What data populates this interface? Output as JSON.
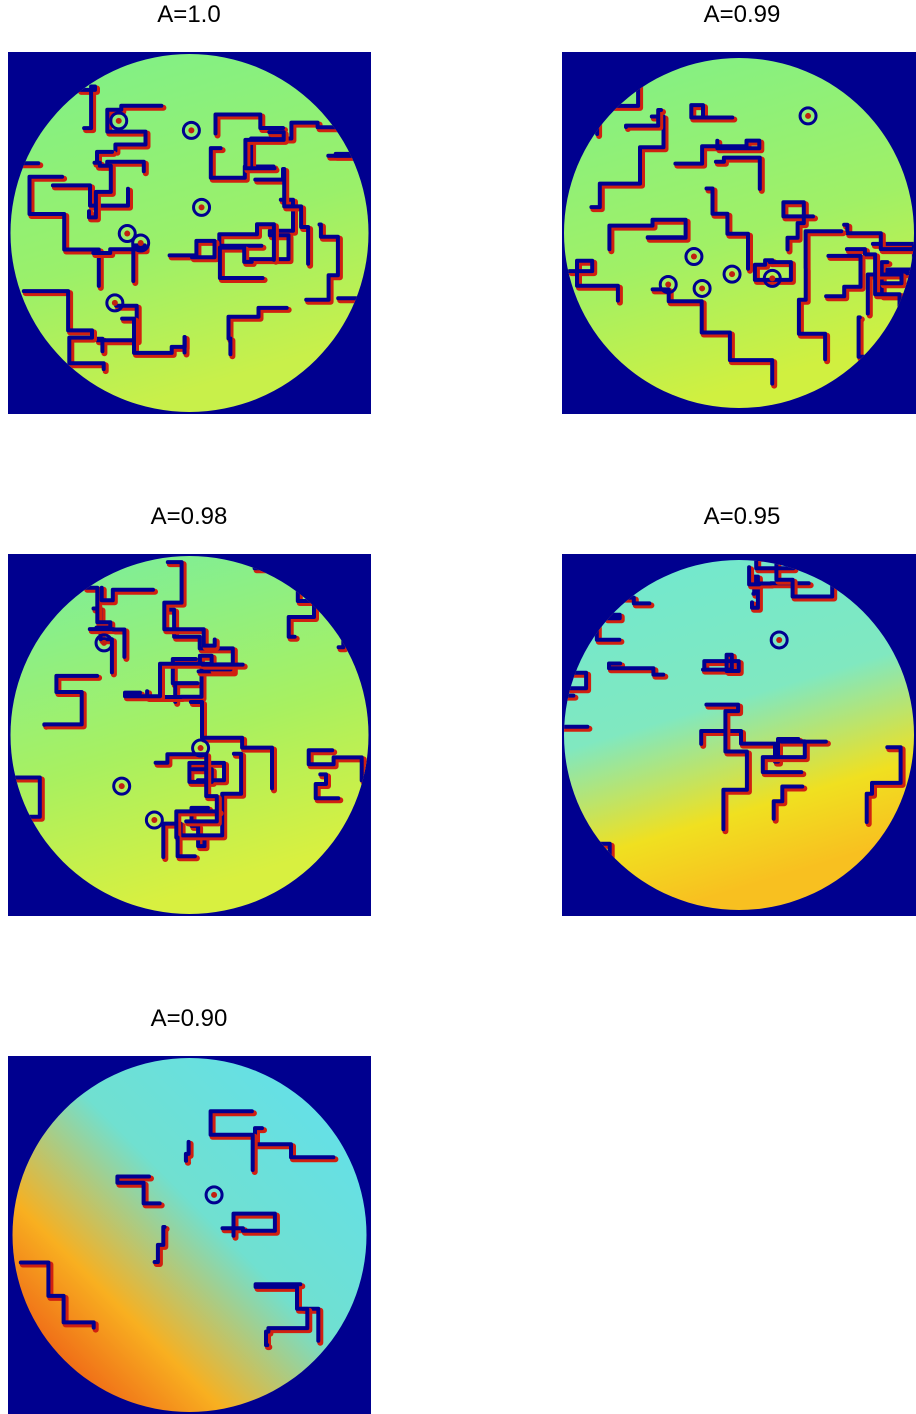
{
  "panels": [
    {
      "title": "A=1.0"
    },
    {
      "title": "A=0.99"
    },
    {
      "title": "A=0.98"
    },
    {
      "title": "A=0.95"
    },
    {
      "title": "A=0.90"
    }
  ]
}
